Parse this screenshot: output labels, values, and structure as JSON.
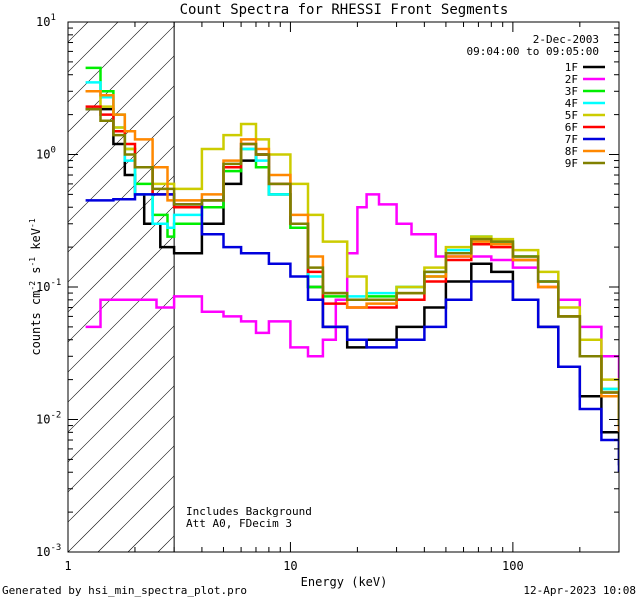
{
  "chart_data": {
    "type": "line",
    "title": "Count Spectra for RHESSI Front Segments",
    "xlabel": "Energy (keV)",
    "ylabel": "counts cm",
    "ylabel_sup1": "-2",
    "ylabel_mid": " s",
    "ylabel_sup2": "-1",
    "ylabel_end": " keV",
    "ylabel_sup3": "-1",
    "xscale": "log",
    "yscale": "log",
    "xlim": [
      1,
      300
    ],
    "ylim": [
      0.001,
      10
    ],
    "x_ticks": [
      {
        "value": 1,
        "label": "1"
      },
      {
        "value": 10,
        "label": "10"
      },
      {
        "value": 100,
        "label": "100"
      }
    ],
    "y_ticks": [
      {
        "value": 10,
        "base": "10",
        "exp": "1"
      },
      {
        "value": 1,
        "base": "10",
        "exp": "0"
      },
      {
        "value": 0.1,
        "base": "10",
        "exp": "-1"
      },
      {
        "value": 0.01,
        "base": "10",
        "exp": "-2"
      },
      {
        "value": 0.001,
        "base": "10",
        "exp": "-3"
      }
    ],
    "date": "2-Dec-2003",
    "time_range": "09:04:00 to 09:05:00",
    "annotation_1": "Includes Background",
    "annotation_2": "Att A0, FDecim 3",
    "excluded_region": [
      1,
      3
    ],
    "footer_left": "Generated by hsi_min_spectra_plot.pro",
    "footer_right": "12-Apr-2023 10:08",
    "series": [
      {
        "name": "1F",
        "color": "#000000",
        "points": [
          [
            1.2,
            2.2
          ],
          [
            1.6,
            1.2
          ],
          [
            1.8,
            0.7
          ],
          [
            2.0,
            0.5
          ],
          [
            2.2,
            0.3
          ],
          [
            2.6,
            0.2
          ],
          [
            3,
            0.18
          ],
          [
            4,
            0.3
          ],
          [
            5,
            0.6
          ],
          [
            6,
            0.9
          ],
          [
            7,
            1.0
          ],
          [
            8,
            0.5
          ],
          [
            10,
            0.3
          ],
          [
            12,
            0.1
          ],
          [
            14,
            0.05
          ],
          [
            18,
            0.035
          ],
          [
            22,
            0.04
          ],
          [
            30,
            0.05
          ],
          [
            40,
            0.07
          ],
          [
            50,
            0.11
          ],
          [
            65,
            0.15
          ],
          [
            80,
            0.13
          ],
          [
            100,
            0.08
          ],
          [
            130,
            0.05
          ],
          [
            160,
            0.025
          ],
          [
            200,
            0.015
          ],
          [
            250,
            0.008
          ],
          [
            300,
            0.0045
          ]
        ]
      },
      {
        "name": "2F",
        "color": "#ff00ff",
        "points": [
          [
            1.2,
            0.05
          ],
          [
            1.4,
            0.08
          ],
          [
            2.0,
            0.08
          ],
          [
            2.5,
            0.07
          ],
          [
            3,
            0.085
          ],
          [
            4,
            0.065
          ],
          [
            5,
            0.06
          ],
          [
            6,
            0.055
          ],
          [
            7,
            0.045
          ],
          [
            8,
            0.055
          ],
          [
            10,
            0.035
          ],
          [
            12,
            0.03
          ],
          [
            14,
            0.04
          ],
          [
            16,
            0.08
          ],
          [
            18,
            0.18
          ],
          [
            20,
            0.4
          ],
          [
            22,
            0.5
          ],
          [
            25,
            0.42
          ],
          [
            30,
            0.3
          ],
          [
            35,
            0.25
          ],
          [
            45,
            0.17
          ],
          [
            60,
            0.17
          ],
          [
            80,
            0.16
          ],
          [
            100,
            0.14
          ],
          [
            130,
            0.11
          ],
          [
            160,
            0.08
          ],
          [
            200,
            0.05
          ],
          [
            250,
            0.03
          ],
          [
            300,
            0.016
          ]
        ]
      },
      {
        "name": "3F",
        "color": "#00ee00",
        "points": [
          [
            1.2,
            4.5
          ],
          [
            1.4,
            3.0
          ],
          [
            1.6,
            2.0
          ],
          [
            1.8,
            1.1
          ],
          [
            2.0,
            0.6
          ],
          [
            2.4,
            0.35
          ],
          [
            2.8,
            0.24
          ],
          [
            3,
            0.3
          ],
          [
            4,
            0.4
          ],
          [
            5,
            0.75
          ],
          [
            6,
            1.1
          ],
          [
            7,
            0.8
          ],
          [
            8,
            0.5
          ],
          [
            10,
            0.28
          ],
          [
            12,
            0.1
          ],
          [
            14,
            0.085
          ],
          [
            18,
            0.08
          ],
          [
            22,
            0.085
          ],
          [
            30,
            0.1
          ],
          [
            40,
            0.12
          ],
          [
            50,
            0.18
          ],
          [
            65,
            0.24
          ],
          [
            80,
            0.22
          ],
          [
            100,
            0.17
          ],
          [
            130,
            0.11
          ],
          [
            160,
            0.06
          ],
          [
            200,
            0.03
          ],
          [
            250,
            0.017
          ],
          [
            300,
            0.01
          ]
        ]
      },
      {
        "name": "4F",
        "color": "#00ffff",
        "points": [
          [
            1.2,
            3.5
          ],
          [
            1.4,
            2.7
          ],
          [
            1.6,
            1.6
          ],
          [
            1.8,
            0.9
          ],
          [
            2.0,
            0.5
          ],
          [
            2.4,
            0.3
          ],
          [
            2.8,
            0.28
          ],
          [
            3,
            0.35
          ],
          [
            4,
            0.45
          ],
          [
            5,
            0.8
          ],
          [
            6,
            1.1
          ],
          [
            7,
            0.9
          ],
          [
            8,
            0.5
          ],
          [
            10,
            0.3
          ],
          [
            12,
            0.12
          ],
          [
            14,
            0.09
          ],
          [
            18,
            0.085
          ],
          [
            22,
            0.09
          ],
          [
            30,
            0.1
          ],
          [
            40,
            0.13
          ],
          [
            50,
            0.19
          ],
          [
            65,
            0.24
          ],
          [
            80,
            0.22
          ],
          [
            100,
            0.17
          ],
          [
            130,
            0.11
          ],
          [
            160,
            0.06
          ],
          [
            200,
            0.03
          ],
          [
            250,
            0.017
          ],
          [
            300,
            0.01
          ]
        ]
      },
      {
        "name": "5F",
        "color": "#cccc00",
        "points": [
          [
            1.2,
            3.0
          ],
          [
            1.4,
            2.3
          ],
          [
            1.6,
            1.6
          ],
          [
            1.8,
            1.1
          ],
          [
            2.0,
            0.8
          ],
          [
            2.4,
            0.6
          ],
          [
            3,
            0.55
          ],
          [
            4,
            1.1
          ],
          [
            5,
            1.4
          ],
          [
            6,
            1.7
          ],
          [
            7,
            1.3
          ],
          [
            8,
            1.0
          ],
          [
            10,
            0.6
          ],
          [
            12,
            0.35
          ],
          [
            14,
            0.22
          ],
          [
            18,
            0.12
          ],
          [
            22,
            0.08
          ],
          [
            30,
            0.1
          ],
          [
            40,
            0.14
          ],
          [
            50,
            0.2
          ],
          [
            65,
            0.24
          ],
          [
            80,
            0.23
          ],
          [
            100,
            0.19
          ],
          [
            130,
            0.13
          ],
          [
            160,
            0.07
          ],
          [
            200,
            0.04
          ],
          [
            250,
            0.02
          ],
          [
            300,
            0.012
          ]
        ]
      },
      {
        "name": "6F",
        "color": "#ff0000",
        "points": [
          [
            1.2,
            2.3
          ],
          [
            1.4,
            2.0
          ],
          [
            1.6,
            1.5
          ],
          [
            1.8,
            1.2
          ],
          [
            2.0,
            0.8
          ],
          [
            2.4,
            0.5
          ],
          [
            3,
            0.4
          ],
          [
            4,
            0.45
          ],
          [
            5,
            0.8
          ],
          [
            6,
            1.2
          ],
          [
            7,
            1.0
          ],
          [
            8,
            0.6
          ],
          [
            10,
            0.3
          ],
          [
            12,
            0.13
          ],
          [
            14,
            0.075
          ],
          [
            18,
            0.07
          ],
          [
            22,
            0.07
          ],
          [
            30,
            0.08
          ],
          [
            40,
            0.11
          ],
          [
            50,
            0.16
          ],
          [
            65,
            0.21
          ],
          [
            80,
            0.2
          ],
          [
            100,
            0.16
          ],
          [
            130,
            0.1
          ],
          [
            160,
            0.06
          ],
          [
            200,
            0.03
          ],
          [
            250,
            0.016
          ],
          [
            300,
            0.009
          ]
        ]
      },
      {
        "name": "7F",
        "color": "#0000dd",
        "points": [
          [
            1.2,
            0.45
          ],
          [
            1.6,
            0.46
          ],
          [
            2.0,
            0.5
          ],
          [
            2.4,
            0.5
          ],
          [
            3,
            0.42
          ],
          [
            4,
            0.25
          ],
          [
            5,
            0.2
          ],
          [
            6,
            0.18
          ],
          [
            8,
            0.15
          ],
          [
            10,
            0.12
          ],
          [
            12,
            0.08
          ],
          [
            14,
            0.05
          ],
          [
            18,
            0.04
          ],
          [
            22,
            0.035
          ],
          [
            30,
            0.04
          ],
          [
            40,
            0.05
          ],
          [
            50,
            0.08
          ],
          [
            65,
            0.11
          ],
          [
            80,
            0.11
          ],
          [
            100,
            0.08
          ],
          [
            130,
            0.05
          ],
          [
            160,
            0.025
          ],
          [
            200,
            0.012
          ],
          [
            250,
            0.007
          ],
          [
            300,
            0.004
          ]
        ]
      },
      {
        "name": "8F",
        "color": "#ff8800",
        "points": [
          [
            1.2,
            3.0
          ],
          [
            1.4,
            2.8
          ],
          [
            1.6,
            2.0
          ],
          [
            1.8,
            1.5
          ],
          [
            2.0,
            1.3
          ],
          [
            2.4,
            0.8
          ],
          [
            2.8,
            0.45
          ],
          [
            3,
            0.45
          ],
          [
            4,
            0.5
          ],
          [
            5,
            0.9
          ],
          [
            6,
            1.3
          ],
          [
            7,
            1.1
          ],
          [
            8,
            0.7
          ],
          [
            10,
            0.35
          ],
          [
            12,
            0.17
          ],
          [
            14,
            0.09
          ],
          [
            18,
            0.07
          ],
          [
            22,
            0.075
          ],
          [
            30,
            0.09
          ],
          [
            40,
            0.12
          ],
          [
            50,
            0.17
          ],
          [
            65,
            0.22
          ],
          [
            80,
            0.21
          ],
          [
            100,
            0.16
          ],
          [
            130,
            0.1
          ],
          [
            160,
            0.06
          ],
          [
            200,
            0.03
          ],
          [
            250,
            0.015
          ],
          [
            300,
            0.008
          ]
        ]
      },
      {
        "name": "9F",
        "color": "#808000",
        "points": [
          [
            1.2,
            2.2
          ],
          [
            1.4,
            1.8
          ],
          [
            1.6,
            1.4
          ],
          [
            1.8,
            1.0
          ],
          [
            2.0,
            0.8
          ],
          [
            2.4,
            0.55
          ],
          [
            3,
            0.42
          ],
          [
            4,
            0.45
          ],
          [
            5,
            0.85
          ],
          [
            6,
            1.2
          ],
          [
            7,
            1.0
          ],
          [
            8,
            0.6
          ],
          [
            10,
            0.3
          ],
          [
            12,
            0.14
          ],
          [
            14,
            0.09
          ],
          [
            18,
            0.08
          ],
          [
            22,
            0.08
          ],
          [
            30,
            0.09
          ],
          [
            40,
            0.13
          ],
          [
            50,
            0.18
          ],
          [
            65,
            0.23
          ],
          [
            80,
            0.22
          ],
          [
            100,
            0.17
          ],
          [
            130,
            0.11
          ],
          [
            160,
            0.06
          ],
          [
            200,
            0.03
          ],
          [
            250,
            0.016
          ],
          [
            300,
            0.009
          ]
        ]
      }
    ]
  }
}
